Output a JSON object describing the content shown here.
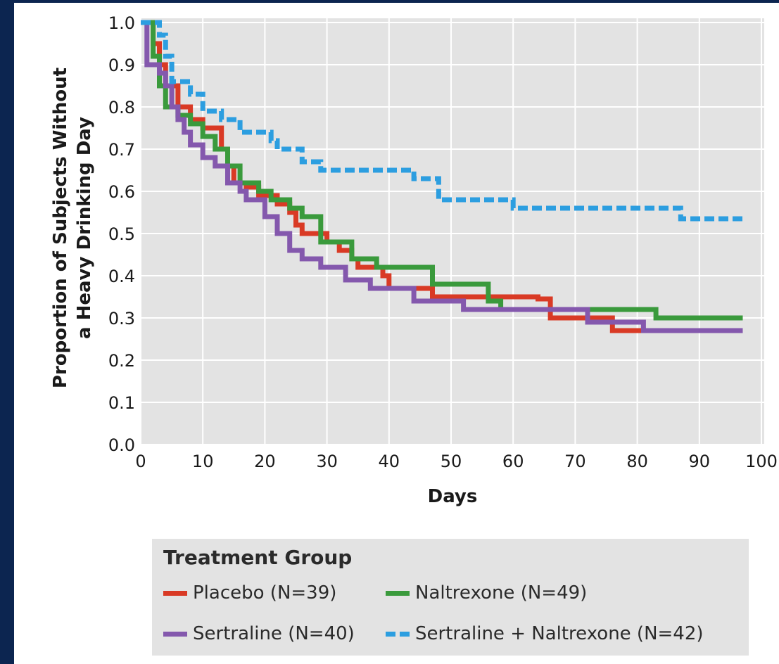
{
  "chart_data": {
    "type": "line",
    "title": "",
    "xlabel": "Days",
    "ylabel_line1": "Proportion of Subjects Without",
    "ylabel_line2": "a Heavy Drinking Day",
    "xlim": [
      0,
      100
    ],
    "ylim": [
      0,
      1.0
    ],
    "xticks": [
      0,
      10,
      20,
      30,
      40,
      50,
      60,
      70,
      80,
      90,
      100
    ],
    "yticks": [
      0.0,
      0.1,
      0.2,
      0.3,
      0.4,
      0.5,
      0.6,
      0.7,
      0.8,
      0.9,
      1.0
    ],
    "ytick_labels": [
      "0.0",
      "0.1",
      "0.2",
      "0.3",
      "0.4",
      "0.5",
      "0.6",
      "0.7",
      "0.8",
      "0.9",
      "1.0"
    ],
    "grid": true,
    "step": true,
    "series": [
      {
        "name": "Placebo (N=39)",
        "color": "#d93a25",
        "dashed": false,
        "points": [
          [
            0,
            1.0
          ],
          [
            2,
            0.95
          ],
          [
            3,
            0.9
          ],
          [
            4,
            0.85
          ],
          [
            6,
            0.8
          ],
          [
            8,
            0.77
          ],
          [
            10,
            0.75
          ],
          [
            12,
            0.75
          ],
          [
            13,
            0.7
          ],
          [
            14,
            0.66
          ],
          [
            15,
            0.62
          ],
          [
            17,
            0.61
          ],
          [
            19,
            0.59
          ],
          [
            22,
            0.57
          ],
          [
            24,
            0.55
          ],
          [
            25,
            0.52
          ],
          [
            26,
            0.5
          ],
          [
            30,
            0.48
          ],
          [
            32,
            0.46
          ],
          [
            34,
            0.44
          ],
          [
            35,
            0.42
          ],
          [
            39,
            0.4
          ],
          [
            40,
            0.37
          ],
          [
            47,
            0.35
          ],
          [
            58,
            0.35
          ],
          [
            64,
            0.345
          ],
          [
            66,
            0.3
          ],
          [
            76,
            0.27
          ],
          [
            97,
            0.27
          ]
        ]
      },
      {
        "name": "Naltrexone (N=49)",
        "color": "#3a9a3c",
        "dashed": false,
        "points": [
          [
            0,
            1.0
          ],
          [
            2,
            0.92
          ],
          [
            3,
            0.85
          ],
          [
            4,
            0.8
          ],
          [
            6,
            0.78
          ],
          [
            8,
            0.76
          ],
          [
            10,
            0.73
          ],
          [
            12,
            0.7
          ],
          [
            14,
            0.66
          ],
          [
            16,
            0.62
          ],
          [
            19,
            0.6
          ],
          [
            21,
            0.58
          ],
          [
            24,
            0.56
          ],
          [
            26,
            0.54
          ],
          [
            29,
            0.48
          ],
          [
            34,
            0.44
          ],
          [
            38,
            0.42
          ],
          [
            47,
            0.38
          ],
          [
            56,
            0.34
          ],
          [
            58,
            0.32
          ],
          [
            83,
            0.3
          ],
          [
            97,
            0.3
          ]
        ]
      },
      {
        "name": "Sertraline (N=40)",
        "color": "#8458ad",
        "dashed": false,
        "points": [
          [
            0,
            1.0
          ],
          [
            1,
            0.9
          ],
          [
            3,
            0.88
          ],
          [
            4,
            0.85
          ],
          [
            5,
            0.8
          ],
          [
            6,
            0.77
          ],
          [
            7,
            0.74
          ],
          [
            8,
            0.71
          ],
          [
            10,
            0.68
          ],
          [
            12,
            0.66
          ],
          [
            14,
            0.62
          ],
          [
            16,
            0.6
          ],
          [
            17,
            0.58
          ],
          [
            20,
            0.54
          ],
          [
            22,
            0.5
          ],
          [
            24,
            0.46
          ],
          [
            26,
            0.44
          ],
          [
            29,
            0.42
          ],
          [
            33,
            0.39
          ],
          [
            37,
            0.37
          ],
          [
            44,
            0.34
          ],
          [
            52,
            0.32
          ],
          [
            72,
            0.29
          ],
          [
            81,
            0.27
          ],
          [
            97,
            0.27
          ]
        ]
      },
      {
        "name": "Sertraline + Naltrexone (N=42)",
        "color": "#2c9ee0",
        "dashed": true,
        "points": [
          [
            0,
            1.0
          ],
          [
            3,
            0.97
          ],
          [
            4,
            0.92
          ],
          [
            5,
            0.86
          ],
          [
            8,
            0.83
          ],
          [
            10,
            0.79
          ],
          [
            13,
            0.77
          ],
          [
            16,
            0.74
          ],
          [
            21,
            0.72
          ],
          [
            22,
            0.7
          ],
          [
            26,
            0.67
          ],
          [
            29,
            0.65
          ],
          [
            44,
            0.63
          ],
          [
            48,
            0.58
          ],
          [
            60,
            0.56
          ],
          [
            87,
            0.535
          ],
          [
            97,
            0.535
          ]
        ]
      }
    ],
    "legend": {
      "title": "Treatment Group",
      "placement": "bottom"
    }
  }
}
